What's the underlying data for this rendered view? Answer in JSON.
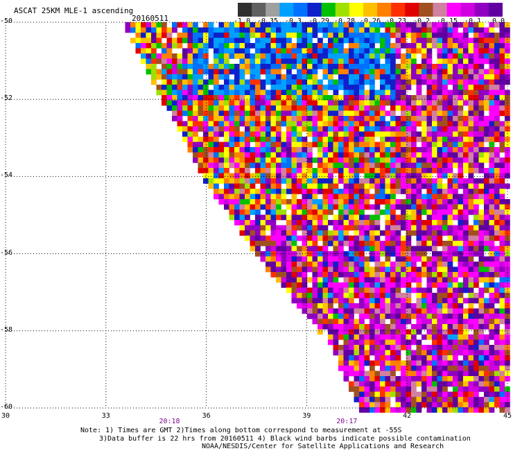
{
  "header": {
    "title": "ASCAT 25KM MLE-1 ascending",
    "date": "20160511"
  },
  "colorbar": {
    "labels": [
      "-1.0",
      "-0.35",
      "-0.3",
      "-0.29",
      "-0.28",
      "-0.26",
      "-0.23",
      "-0.2",
      "-0.15",
      "-0.1",
      "0.0"
    ],
    "colors": [
      "#303030",
      "#606060",
      "#a0a0a0",
      "#00a0ff",
      "#0070ff",
      "#1020c8",
      "#00c000",
      "#a0e000",
      "#ffff00",
      "#ffc000",
      "#ff8000",
      "#ff3000",
      "#e00000",
      "#a05020",
      "#d080a0",
      "#ff00ff",
      "#d000e0",
      "#9000c0",
      "#6000a0"
    ]
  },
  "footer": {
    "note_line1": "Note: 1) Times are GMT 2)Times along bottom correspond to measurement at -55S",
    "note_line2": "3)Data buffer is 22 hrs from 20160511 4) Black wind barbs indicate possible contamination",
    "note_line3": "NOAA/NESDIS/Center for Satellite Applications and Research"
  },
  "chart_data": {
    "type": "heatmap",
    "title": "ASCAT 25KM MLE-1 ascending",
    "subtitle": "20160511",
    "xlabel": "",
    "ylabel": "",
    "x_ticks": [
      30,
      33,
      36,
      39,
      42,
      45
    ],
    "y_ticks": [
      -50,
      -52,
      -54,
      -56,
      -58,
      -60
    ],
    "xlim": [
      30,
      45
    ],
    "ylim": [
      -60,
      -50
    ],
    "grid": true,
    "time_labels": [
      {
        "lon": 34.9,
        "text": "20:18"
      },
      {
        "lon": 40.2,
        "text": "20:17"
      }
    ],
    "swath_edge": [
      [
        33.6,
        -50.0
      ],
      [
        36.0,
        -54.0
      ],
      [
        37.6,
        -56.0
      ],
      [
        39.7,
        -58.2
      ],
      [
        40.7,
        -60.0
      ]
    ],
    "value_range": [
      -1.0,
      0.0
    ],
    "note": "Swath of MLE-1 values; blue/green band (-0.35 to -0.29) concentrated near -50.5 to -51.5 lat, 36-42 lon; purple/magenta (-0.15 to 0.0) dominant east of 40 lon and south of -55 lat; mixed warm colors elsewhere."
  }
}
